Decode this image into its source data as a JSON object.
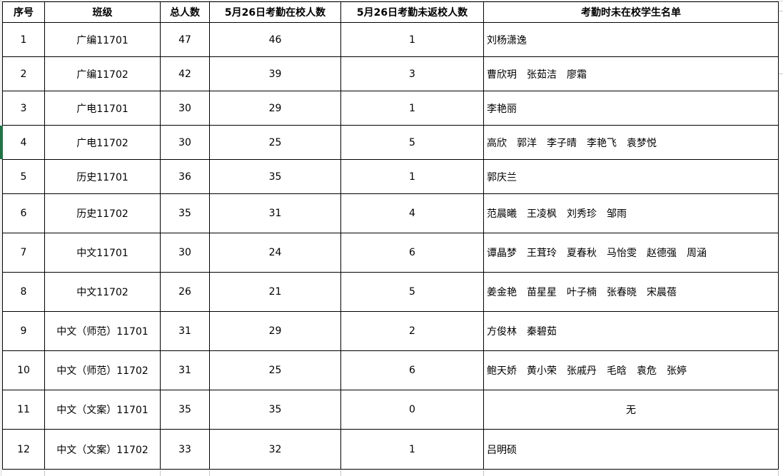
{
  "table": {
    "columns": [
      "序号",
      "班级",
      "总人数",
      "5月26日考勤在校人数",
      "5月26日考勤未返校人数",
      "考勤时未在校学生名单"
    ],
    "rows": [
      {
        "no": "1",
        "class": "广编11701",
        "total": "47",
        "present": "46",
        "absent": "1",
        "names": "刘杨潇逸"
      },
      {
        "no": "2",
        "class": "广编11702",
        "total": "42",
        "present": "39",
        "absent": "3",
        "names": "曹欣玥　张茹洁　廖霜"
      },
      {
        "no": "3",
        "class": "广电11701",
        "total": "30",
        "present": "29",
        "absent": "1",
        "names": "李艳丽"
      },
      {
        "no": "4",
        "class": "广电11702",
        "total": "30",
        "present": "25",
        "absent": "5",
        "names": "高欣　郭洋　李子晴　李艳飞　袁梦悦"
      },
      {
        "no": "5",
        "class": "历史11701",
        "total": "36",
        "present": "35",
        "absent": "1",
        "names": "郭庆兰"
      },
      {
        "no": "6",
        "class": "历史11702",
        "total": "35",
        "present": "31",
        "absent": "4",
        "names": "范晨曦　王凌枫　刘秀珍　邹雨"
      },
      {
        "no": "7",
        "class": "中文11701",
        "total": "30",
        "present": "24",
        "absent": "6",
        "names": "谭晶梦　王茸玲　夏春秋　马怡雯　赵德强　周涵"
      },
      {
        "no": "8",
        "class": "中文11702",
        "total": "26",
        "present": "21",
        "absent": "5",
        "names": "姜金艳　苗星星　叶子楠　张春晓　宋晨蓓"
      },
      {
        "no": "9",
        "class": "中文（师范）11701",
        "total": "31",
        "present": "29",
        "absent": "2",
        "names": "方俊林　秦碧茹"
      },
      {
        "no": "10",
        "class": "中文（师范）11702",
        "total": "31",
        "present": "25",
        "absent": "6",
        "names": "鲍天娇　黄小荣　张戚丹　毛晗　袁危　张婷"
      },
      {
        "no": "11",
        "class": "中文（文案）11701",
        "total": "35",
        "present": "35",
        "absent": "0",
        "names": "无",
        "names_centered": true
      },
      {
        "no": "12",
        "class": "中文（文案）11702",
        "total": "33",
        "present": "32",
        "absent": "1",
        "names": "吕明硕"
      }
    ],
    "selection": {
      "selected_row_no": "4",
      "color": "#217346"
    }
  }
}
